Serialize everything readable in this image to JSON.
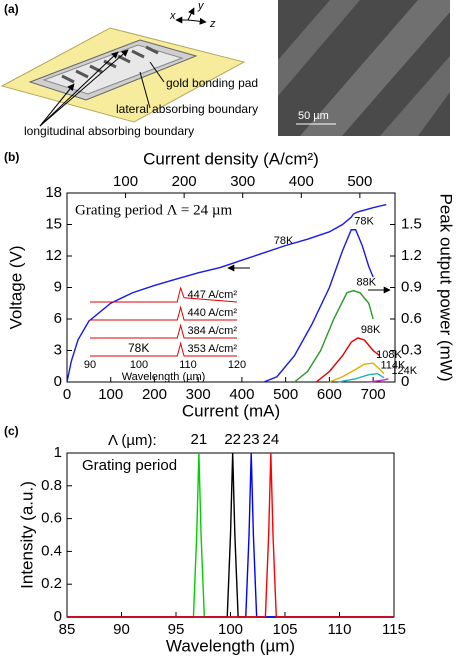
{
  "panel_labels": [
    "(a)",
    "(b)",
    "(c)"
  ],
  "diagram": {
    "axis_labels": [
      "x",
      "y",
      "z"
    ],
    "labels": [
      "gold bonding pad",
      "lateral absorbing boundary",
      "longitudinal absorbing boundary"
    ]
  },
  "sem": {
    "scale_bar": "50 µm"
  },
  "chart_data": [
    {
      "type": "line",
      "x2label": "Current density (A/cm²)",
      "x2lim": [
        0,
        560
      ],
      "x2ticks": [
        100,
        200,
        300,
        400,
        500
      ],
      "xlabel": "Current (mA)",
      "xlim": [
        0,
        750
      ],
      "xticks": [
        0,
        100,
        200,
        300,
        400,
        500,
        600,
        700
      ],
      "ylabel": "Voltage (V)",
      "ylim": [
        0,
        18
      ],
      "yticks": [
        0,
        3,
        6,
        9,
        12,
        15,
        18
      ],
      "y2label": "Peak output power (mW)",
      "y2lim": [
        0,
        1.8
      ],
      "y2ticks": [
        0,
        0.3,
        0.6,
        0.9,
        1.2,
        1.5
      ],
      "annotations": [
        "Grating period Λ = 24 µm"
      ],
      "series": [
        {
          "name": "78K",
          "color": "#1a1ae6",
          "axis": "y",
          "x": [
            0,
            10,
            25,
            50,
            100,
            150,
            200,
            250,
            300,
            350,
            400,
            450,
            500,
            550,
            600,
            630,
            650,
            655,
            665,
            700,
            730
          ],
          "values": [
            0,
            2,
            4,
            5.8,
            7.5,
            8.5,
            9.2,
            9.8,
            10.4,
            10.9,
            11.6,
            12.3,
            13.0,
            13.6,
            14.3,
            15.0,
            15.7,
            16.0,
            16.2,
            16.6,
            16.9
          ]
        },
        {
          "name": "78K",
          "color": "#1a1ae6",
          "axis": "y2",
          "x": [
            450,
            480,
            520,
            560,
            600,
            630,
            650,
            660,
            675,
            690,
            700
          ],
          "values": [
            0,
            0.05,
            0.25,
            0.55,
            0.9,
            1.25,
            1.45,
            1.45,
            1.3,
            1.1,
            1.0
          ]
        },
        {
          "name": "88K",
          "color": "#2a9a2a",
          "axis": "y2",
          "x": [
            520,
            550,
            580,
            610,
            640,
            655,
            670,
            690,
            700
          ],
          "values": [
            0,
            0.1,
            0.3,
            0.6,
            0.85,
            0.87,
            0.85,
            0.75,
            0.6
          ]
        },
        {
          "name": "98K",
          "color": "#e00000",
          "axis": "y2",
          "x": [
            570,
            600,
            630,
            650,
            665,
            680,
            700,
            715
          ],
          "values": [
            0,
            0.1,
            0.25,
            0.38,
            0.42,
            0.4,
            0.3,
            0.25
          ]
        },
        {
          "name": "108K",
          "color": "#e0b000",
          "axis": "y2",
          "x": [
            600,
            630,
            660,
            680,
            700,
            715,
            725
          ],
          "values": [
            0,
            0.05,
            0.12,
            0.17,
            0.18,
            0.12,
            0.08
          ]
        },
        {
          "name": "114K",
          "color": "#20b0c0",
          "axis": "y2",
          "x": [
            620,
            660,
            690,
            710,
            725
          ],
          "values": [
            0,
            0.03,
            0.07,
            0.08,
            0.04
          ]
        },
        {
          "name": "124K",
          "color": "#d020d0",
          "axis": "y2",
          "x": [
            690,
            710,
            725,
            735
          ],
          "values": [
            0,
            0.01,
            0.02,
            0.03
          ]
        }
      ]
    },
    {
      "type": "spectra",
      "xlabel": "Wavelength (µm)",
      "xlim": [
        90,
        120
      ],
      "xticks": [
        90,
        100,
        110,
        120
      ],
      "ylim": [
        0,
        1
      ],
      "annotations": [
        "78K"
      ],
      "x": [
        90,
        107.8,
        108.2,
        108.5,
        108.8,
        109.2,
        120
      ],
      "series": [
        {
          "name": "447 A/cm²",
          "color": "#e00000",
          "values": [
            0,
            0,
            0.6,
            1,
            0.7,
            0.3,
            0
          ]
        },
        {
          "name": "440 A/cm²",
          "color": "#e00000",
          "values": [
            0,
            0,
            0.5,
            0.9,
            0.5,
            0,
            0
          ]
        },
        {
          "name": "384 A/cm²",
          "color": "#e00000",
          "values": [
            0,
            0,
            0.5,
            0.9,
            0.5,
            0,
            0
          ]
        },
        {
          "name": "353 A/cm²",
          "color": "#e00000",
          "values": [
            0,
            0,
            0.5,
            0.9,
            0.5,
            0,
            0
          ]
        }
      ]
    },
    {
      "type": "line",
      "xlabel": "Wavelength (µm)",
      "xlim": [
        85,
        115
      ],
      "xticks": [
        85,
        90,
        95,
        100,
        105,
        110,
        115
      ],
      "ylabel": "Intensity (a.u.)",
      "ylim": [
        0,
        1
      ],
      "yticks": [
        0,
        0.2,
        0.4,
        0.6,
        0.8,
        1
      ],
      "annotations": [
        "Λ (µm):",
        "Grating period"
      ],
      "series": [
        {
          "name": "21",
          "color": "#00d000",
          "x": [
            85,
            96.6,
            96.9,
            97.1,
            97.3,
            97.6,
            115
          ],
          "values": [
            0,
            0,
            0.5,
            1,
            0.5,
            0,
            0
          ]
        },
        {
          "name": "22",
          "color": "#000000",
          "x": [
            85,
            99.7,
            100.0,
            100.2,
            100.4,
            100.7,
            115
          ],
          "values": [
            0,
            0,
            0.5,
            1,
            0.5,
            0,
            0
          ]
        },
        {
          "name": "23",
          "color": "#0000ff",
          "x": [
            85,
            101.4,
            101.7,
            101.9,
            102.1,
            102.4,
            115
          ],
          "values": [
            0,
            0,
            0.5,
            1,
            0.5,
            0,
            0
          ]
        },
        {
          "name": "24",
          "color": "#ff0000",
          "x": [
            85,
            103.2,
            103.5,
            103.7,
            103.9,
            104.2,
            115
          ],
          "values": [
            0,
            0,
            0.5,
            1,
            0.5,
            0,
            0
          ]
        }
      ]
    }
  ]
}
